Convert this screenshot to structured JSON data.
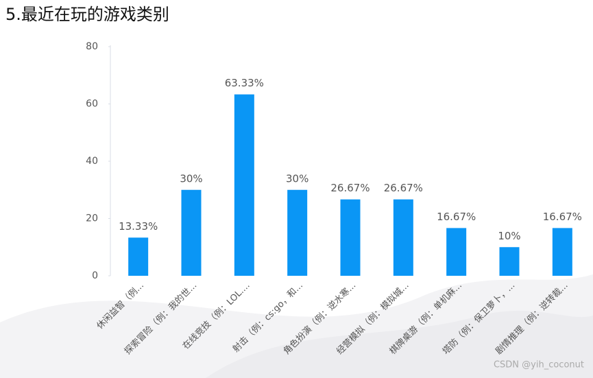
{
  "chart_data": {
    "type": "bar",
    "title": "5.最近在玩的游戏类别",
    "categories": [
      "休闲益智（例...",
      "探索冒险（例：我的世...",
      "在线竞技（例：LOL....",
      "射击（例：cs:go，和...",
      "角色扮演（例：逆水寒...",
      "经营模拟（例：模拟城...",
      "棋牌桌游（例：单机麻...",
      "塔防（例：保卫萝卜，...",
      "剧情推理（例：逆转裁..."
    ],
    "values": [
      13.33,
      30,
      63.33,
      30,
      26.67,
      26.67,
      16.67,
      10,
      16.67
    ],
    "value_labels": [
      "13.33%",
      "30%",
      "63.33%",
      "30%",
      "26.67%",
      "26.67%",
      "16.67%",
      "10%",
      "16.67%"
    ],
    "color": "#0a96f5",
    "ylim": [
      0,
      80
    ],
    "yticks": [
      0,
      20,
      40,
      60,
      80
    ],
    "grid": false
  },
  "watermark": "CSDN @yih_coconut"
}
